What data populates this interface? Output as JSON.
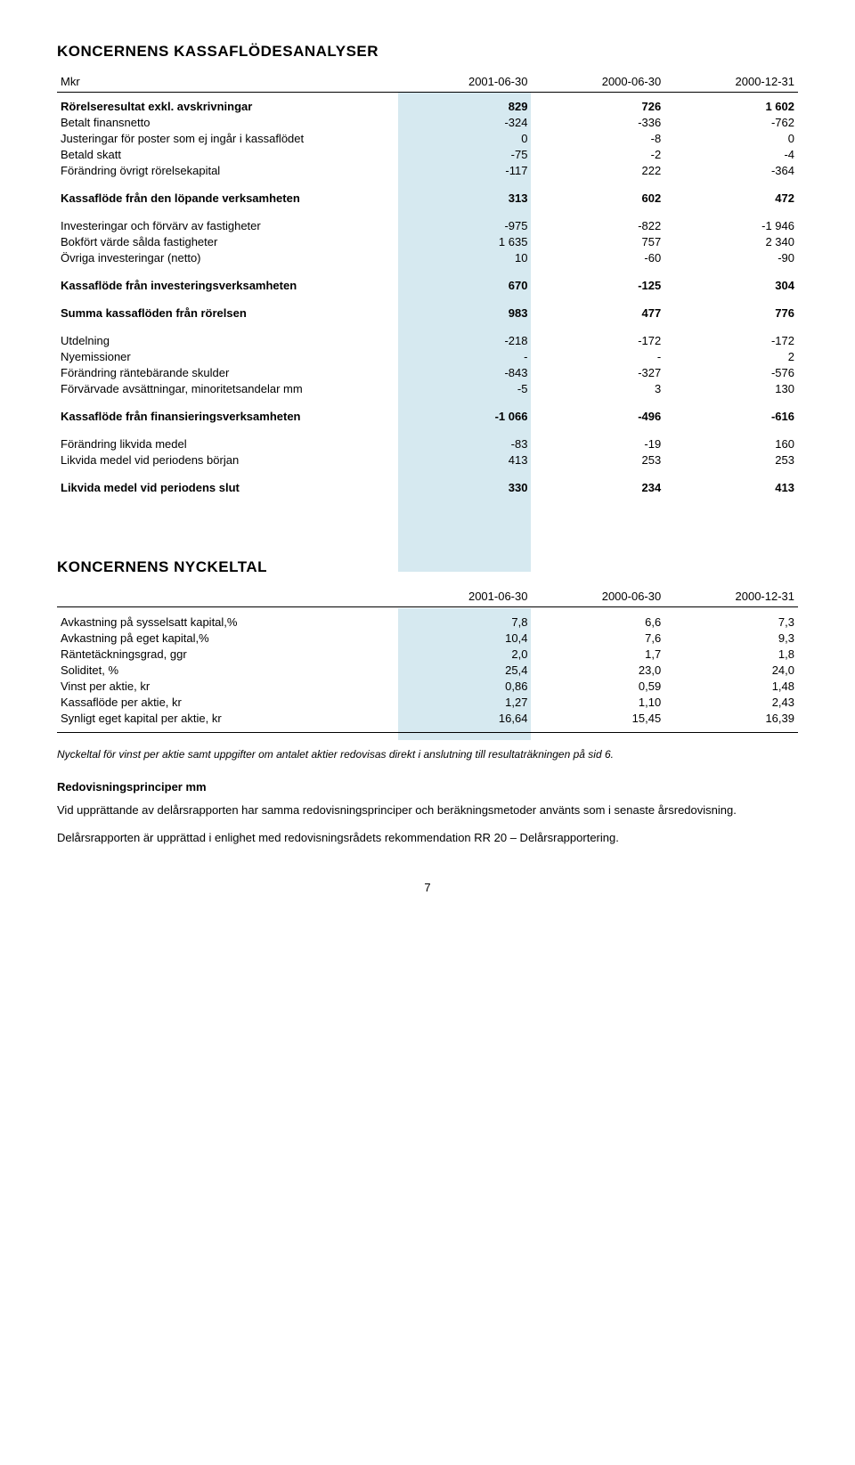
{
  "colors": {
    "highlight": "#d6e9f0",
    "text": "#000000",
    "background": "#ffffff",
    "rule": "#000000"
  },
  "typography": {
    "body_fontsize_pt": 10,
    "title_fontsize_pt": 13,
    "font_family": "Arial"
  },
  "section1": {
    "title": "KONCERNENS KASSAFLÖDESANALYSER",
    "col_headers": [
      "Mkr",
      "2001-06-30",
      "2000-06-30",
      "2000-12-31"
    ],
    "highlight_col_index": 1,
    "rows": [
      {
        "label": "Rörelseresultat exkl. avskrivningar",
        "bold": true,
        "v": [
          "829",
          "726",
          "1 602"
        ]
      },
      {
        "label": "Betalt finansnetto",
        "v": [
          "-324",
          "-336",
          "-762"
        ]
      },
      {
        "label": "Justeringar för poster som ej ingår i kassaflödet",
        "v": [
          "0",
          "-8",
          "0"
        ]
      },
      {
        "label": "Betald skatt",
        "v": [
          "-75",
          "-2",
          "-4"
        ]
      },
      {
        "label": "Förändring övrigt rörelsekapital",
        "v": [
          "-117",
          "222",
          "-364"
        ]
      },
      {
        "spacer": true
      },
      {
        "label": "Kassaflöde från den löpande verksamheten",
        "bold": true,
        "v": [
          "313",
          "602",
          "472"
        ]
      },
      {
        "spacer": true
      },
      {
        "label": "Investeringar och förvärv av fastigheter",
        "v": [
          "-975",
          "-822",
          "-1 946"
        ]
      },
      {
        "label": "Bokfört värde sålda fastigheter",
        "v": [
          "1 635",
          "757",
          "2 340"
        ]
      },
      {
        "label": "Övriga investeringar (netto)",
        "v": [
          "10",
          "-60",
          "-90"
        ]
      },
      {
        "spacer": true
      },
      {
        "label": "Kassaflöde från investeringsverksamheten",
        "bold": true,
        "v": [
          "670",
          "-125",
          "304"
        ]
      },
      {
        "spacer": true
      },
      {
        "label": "Summa kassaflöden från rörelsen",
        "bold": true,
        "v": [
          "983",
          "477",
          "776"
        ]
      },
      {
        "spacer": true
      },
      {
        "label": "Utdelning",
        "v": [
          "-218",
          "-172",
          "-172"
        ]
      },
      {
        "label": "Nyemissioner",
        "v": [
          "-",
          "-",
          "2"
        ]
      },
      {
        "label": "Förändring räntebärande skulder",
        "v": [
          "-843",
          "-327",
          "-576"
        ]
      },
      {
        "label": "Förvärvade avsättningar, minoritetsandelar mm",
        "v": [
          "-5",
          "3",
          "130"
        ]
      },
      {
        "spacer": true
      },
      {
        "label": "Kassaflöde från finansieringsverksamheten",
        "bold": true,
        "v": [
          "-1 066",
          "-496",
          "-616"
        ]
      },
      {
        "spacer": true
      },
      {
        "label": "Förändring likvida medel",
        "v": [
          "-83",
          "-19",
          "160"
        ]
      },
      {
        "label": "Likvida medel vid periodens början",
        "v": [
          "413",
          "253",
          "253"
        ]
      },
      {
        "spacer": true
      },
      {
        "label": "Likvida medel vid periodens slut",
        "bold": true,
        "v": [
          "330",
          "234",
          "413"
        ]
      }
    ]
  },
  "section2": {
    "title": "KONCERNENS NYCKELTAL",
    "col_headers": [
      "",
      "2001-06-30",
      "2000-06-30",
      "2000-12-31"
    ],
    "highlight_col_index": 1,
    "rows": [
      {
        "label": "Avkastning på sysselsatt kapital,%",
        "v": [
          "7,8",
          "6,6",
          "7,3"
        ]
      },
      {
        "label": "Avkastning på eget kapital,%",
        "v": [
          "10,4",
          "7,6",
          "9,3"
        ]
      },
      {
        "label": "Räntetäckningsgrad, ggr",
        "v": [
          "2,0",
          "1,7",
          "1,8"
        ]
      },
      {
        "label": "Soliditet, %",
        "v": [
          "25,4",
          "23,0",
          "24,0"
        ]
      },
      {
        "label": "Vinst per aktie, kr",
        "v": [
          "0,86",
          "0,59",
          "1,48"
        ]
      },
      {
        "label": "Kassaflöde per aktie, kr",
        "v": [
          "1,27",
          "1,10",
          "2,43"
        ]
      },
      {
        "label": "Synligt eget kapital per aktie, kr",
        "v": [
          "16,64",
          "15,45",
          "16,39"
        ]
      }
    ],
    "footnote": "Nyckeltal för vinst per aktie samt uppgifter om antalet aktier redovisas direkt i anslutning till resultaträkningen på sid 6."
  },
  "body_text": {
    "subhead": "Redovisningsprinciper mm",
    "para1": "Vid upprättande av delårsrapporten har samma redovisningsprinciper och beräkningsmetoder använts som i senaste årsredovisning.",
    "para2": "Delårsrapporten är upprättad i enlighet med redovisningsrådets rekommendation RR 20 – Delårsrapportering."
  },
  "page_number": "7"
}
